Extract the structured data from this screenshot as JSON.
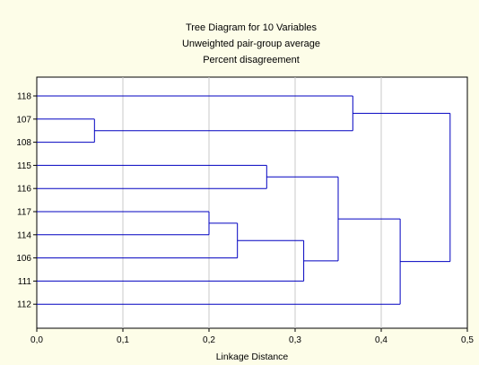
{
  "chart_data": {
    "type": "dendrogram",
    "title": [
      "Tree Diagram for 10  Variables",
      "Unweighted pair-group average",
      "Percent disagreement"
    ],
    "xlabel": "Linkage Distance",
    "ylabel": "",
    "xlim": [
      0.0,
      0.5
    ],
    "x_ticks": [
      "0,0",
      "0,1",
      "0,2",
      "0,3",
      "0,4",
      "0,5"
    ],
    "x_tick_values": [
      0.0,
      0.1,
      0.2,
      0.3,
      0.4,
      0.5
    ],
    "grid": "vertical",
    "leaves": [
      "118",
      "107",
      "108",
      "115",
      "116",
      "117",
      "114",
      "106",
      "111",
      "112"
    ],
    "merges": [
      {
        "left": "107",
        "right": "108",
        "distance": 0.067
      },
      {
        "left": "117",
        "right": "114",
        "distance": 0.2
      },
      {
        "left": "117+114",
        "right": "106",
        "distance": 0.233
      },
      {
        "left": "115",
        "right": "116",
        "distance": 0.267
      },
      {
        "left": "117+114+106",
        "right": "111",
        "distance": 0.31
      },
      {
        "left": "115+116",
        "right": "117+114+106+111",
        "distance": 0.35
      },
      {
        "left": "118",
        "right": "107+108",
        "distance": 0.367
      },
      {
        "left": "115..111",
        "right": "112",
        "distance": 0.422
      },
      {
        "left": "118+107+108",
        "right": "115..112",
        "distance": 0.48
      }
    ],
    "colors": {
      "background": "#fdfde8",
      "plot_area": "#ffffff",
      "tree_line": "#0000c0",
      "grid": "#c8c8c8"
    }
  }
}
